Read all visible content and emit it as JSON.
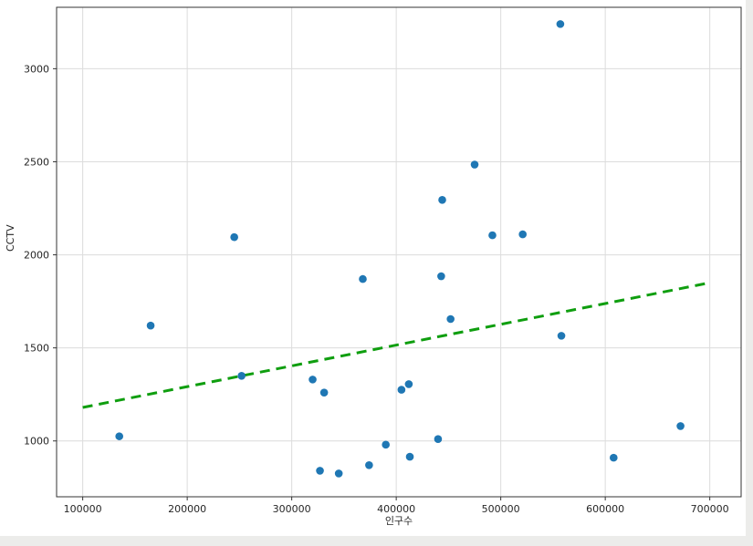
{
  "window": {
    "edge_color": "#ececea",
    "figure_bg": "#ffffff"
  },
  "chart_data": {
    "type": "scatter",
    "title": "",
    "xlabel": "인구수",
    "ylabel": "CCTV",
    "xlim": [
      75000,
      730000
    ],
    "ylim": [
      700,
      3330
    ],
    "x_ticks": [
      100000,
      200000,
      300000,
      400000,
      500000,
      600000,
      700000
    ],
    "y_ticks": [
      1000,
      1500,
      2000,
      2500,
      3000
    ],
    "grid": true,
    "grid_color": "#dcdcdc",
    "spine_color": "#333333",
    "tick_label_color": "#262626",
    "point_color": "#1f77b4",
    "points": [
      [
        135000,
        1025
      ],
      [
        165000,
        1620
      ],
      [
        245000,
        2095
      ],
      [
        252000,
        1350
      ],
      [
        320000,
        1330
      ],
      [
        327000,
        840
      ],
      [
        331000,
        1260
      ],
      [
        345000,
        825
      ],
      [
        368000,
        1870
      ],
      [
        374000,
        870
      ],
      [
        390000,
        980
      ],
      [
        405000,
        1275
      ],
      [
        412000,
        1305
      ],
      [
        413000,
        915
      ],
      [
        440000,
        1010
      ],
      [
        443000,
        1885
      ],
      [
        444000,
        2295
      ],
      [
        452000,
        1655
      ],
      [
        475000,
        2485
      ],
      [
        492000,
        2105
      ],
      [
        521000,
        2110
      ],
      [
        557000,
        3240
      ],
      [
        558000,
        1565
      ],
      [
        608000,
        910
      ],
      [
        672000,
        1080
      ]
    ],
    "trend_line": {
      "style": "dashed",
      "color": "#0f9e0f",
      "width": 3,
      "x": [
        100000,
        700000
      ],
      "y": [
        1180,
        1850
      ]
    }
  }
}
